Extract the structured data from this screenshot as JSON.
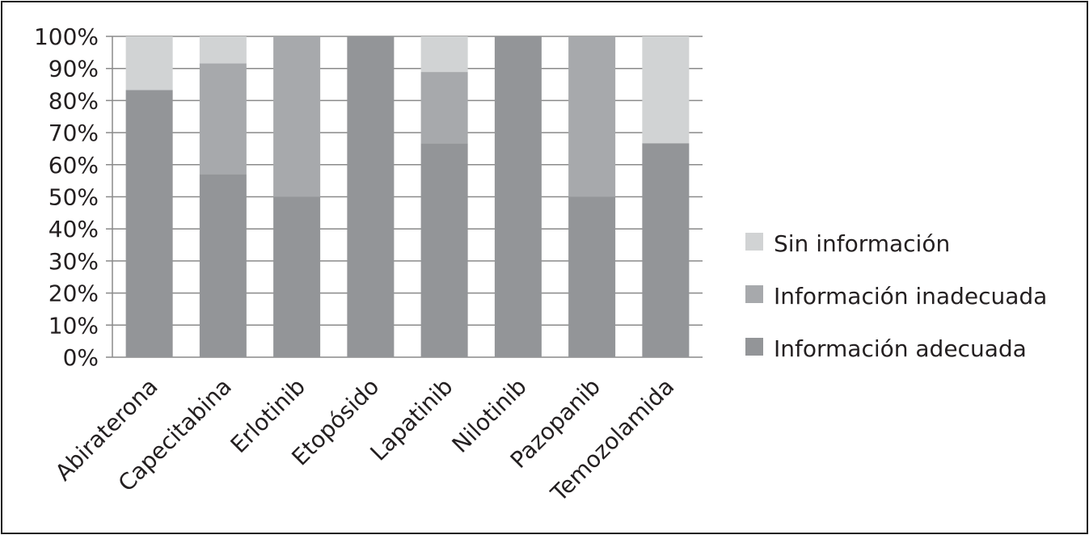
{
  "chart_data": {
    "type": "bar",
    "stacked": true,
    "percent_stacked": true,
    "categories": [
      "Abiraterona",
      "Capecitabina",
      "Erlotinib",
      "Etopósido",
      "Lapatinib",
      "Nilotinib",
      "Pazopanib",
      "Temozolamida"
    ],
    "series": [
      {
        "name": "Información adecuada",
        "values": [
          83.3,
          57.1,
          50,
          100,
          66.7,
          100,
          50,
          66.7
        ]
      },
      {
        "name": "Información inadecuada",
        "values": [
          0,
          34.5,
          50,
          0,
          22.2,
          0,
          50,
          0
        ]
      },
      {
        "name": "Sin información",
        "values": [
          16.7,
          8.4,
          0,
          0,
          11.1,
          0,
          0,
          33.3
        ]
      }
    ],
    "colors": {
      "Información adecuada": "#939598",
      "Información inadecuada": "#a7a9ac",
      "Sin información": "#d1d3d4",
      "gridline": "#8a8a8a"
    },
    "y_ticks": [
      "0%",
      "10%",
      "20%",
      "30%",
      "40%",
      "50%",
      "60%",
      "70%",
      "80%",
      "90%",
      "100%"
    ],
    "ylim": [
      0,
      100
    ],
    "grid": true,
    "legend_position": "right",
    "legend_order": [
      "Sin información",
      "Información inadecuada",
      "Información adecuada"
    ],
    "title": "",
    "xlabel": "",
    "ylabel": ""
  }
}
